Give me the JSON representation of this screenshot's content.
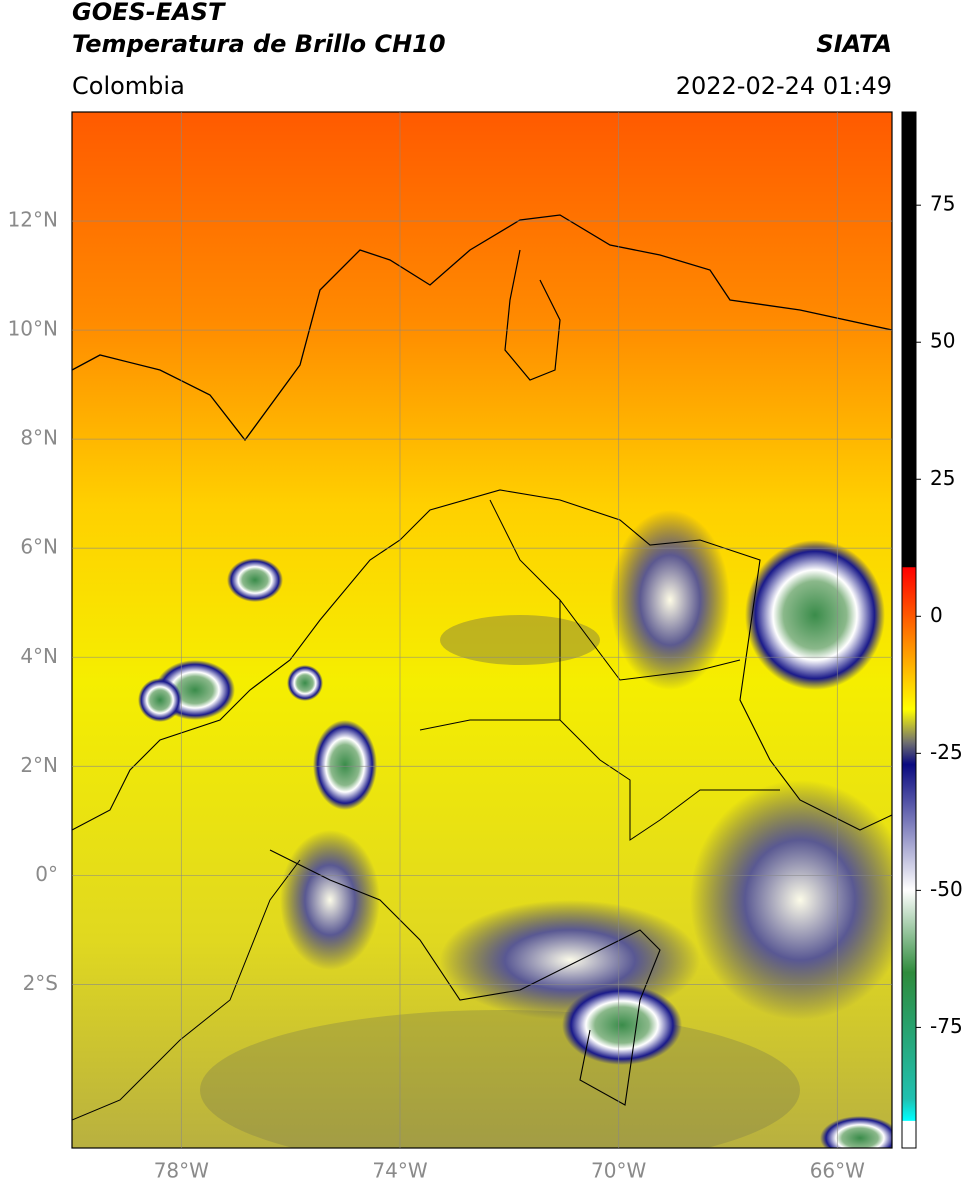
{
  "header": {
    "title_line_1": "GOES-EAST",
    "title_line_2": "Temperatura de Brillo CH10",
    "region": "Colombia",
    "source": "SIATA",
    "timestamp": "2022-02-24 01:49"
  },
  "map": {
    "lon_range": [
      -80,
      -65
    ],
    "lat_range": [
      -5,
      14
    ],
    "lon_ticks": [
      {
        "value": -78,
        "label": "78°W"
      },
      {
        "value": -74,
        "label": "74°W"
      },
      {
        "value": -70,
        "label": "70°W"
      },
      {
        "value": -66,
        "label": "66°W"
      }
    ],
    "lat_ticks": [
      {
        "value": 12,
        "label": "12°N"
      },
      {
        "value": 10,
        "label": "10°N"
      },
      {
        "value": 8,
        "label": "8°N"
      },
      {
        "value": 6,
        "label": "6°N"
      },
      {
        "value": 4,
        "label": "4°N"
      },
      {
        "value": 2,
        "label": "2°N"
      },
      {
        "value": 0,
        "label": "0°"
      },
      {
        "value": -2,
        "label": "2°S"
      }
    ],
    "grid": true
  },
  "colorbar": {
    "range": [
      -97,
      92
    ],
    "ticks": [
      75,
      50,
      25,
      0,
      -25,
      -50,
      -75
    ],
    "stops": [
      {
        "value": 92,
        "color": "#000000"
      },
      {
        "value": 9,
        "color": "#000000"
      },
      {
        "value": 8.9,
        "color": "#ff0000"
      },
      {
        "value": -5,
        "color": "#ff8c00"
      },
      {
        "value": -17,
        "color": "#ffff00"
      },
      {
        "value": -23,
        "color": "#707070"
      },
      {
        "value": -27,
        "color": "#0a0a80"
      },
      {
        "value": -50,
        "color": "#ffffff"
      },
      {
        "value": -65,
        "color": "#2e8b3c"
      },
      {
        "value": -88,
        "color": "#20c0b0"
      },
      {
        "value": -92,
        "color": "#00ffff"
      },
      {
        "value": -92.1,
        "color": "#ffffff"
      },
      {
        "value": -97,
        "color": "#ffffff"
      }
    ]
  }
}
